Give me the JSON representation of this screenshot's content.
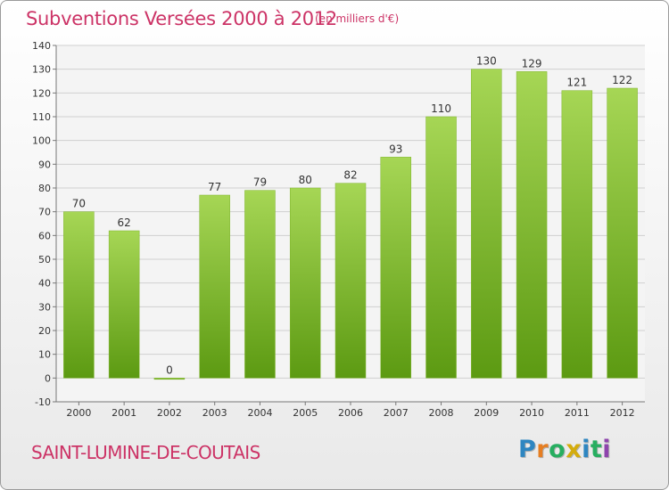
{
  "header": {
    "title": "Subventions Versées 2000 à 2012",
    "unit_note": "(en milliers d'€)"
  },
  "footer": {
    "town": "SAINT-LUMINE-DE-COUTAIS",
    "logo_letters": [
      "P",
      "r",
      "o",
      "x",
      "i",
      "t",
      "i"
    ],
    "logo_colors": [
      "#2e86c1",
      "#e67e22",
      "#27ae60",
      "#d4ac0d",
      "#2e86c1",
      "#27ae60",
      "#8e44ad"
    ]
  },
  "colors": {
    "bar_top": "#a6d655",
    "bar_bottom": "#5c9a12",
    "grid": "#cfcfcf",
    "axis": "#777777",
    "accent": "#cc3366"
  },
  "chart_data": {
    "type": "bar",
    "title": "Subventions Versées 2000 à 2012",
    "subtitle": "(en milliers d'€)",
    "categories": [
      "2000",
      "2001",
      "2002",
      "2003",
      "2004",
      "2005",
      "2006",
      "2007",
      "2008",
      "2009",
      "2010",
      "2011",
      "2012"
    ],
    "values": [
      70,
      62,
      0,
      77,
      79,
      80,
      82,
      93,
      110,
      130,
      129,
      121,
      122
    ],
    "ylim": [
      -10,
      140
    ],
    "yticks": [
      -10,
      0,
      10,
      20,
      30,
      40,
      50,
      60,
      70,
      80,
      90,
      100,
      110,
      120,
      130,
      140
    ],
    "grid": true,
    "data_labels": true
  }
}
